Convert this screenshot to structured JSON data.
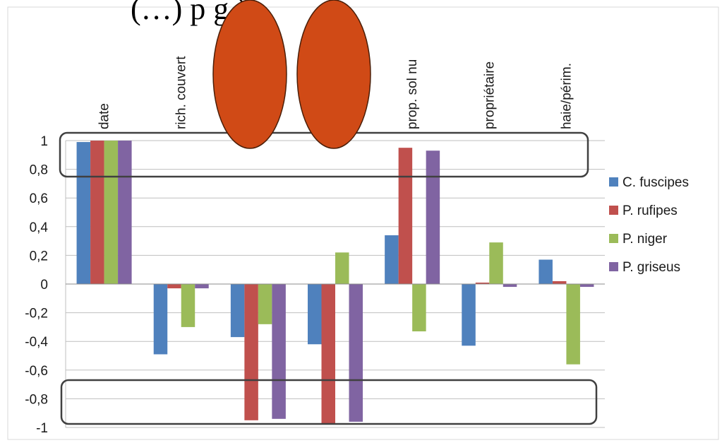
{
  "header_fragment": "(…) p   g   )",
  "chart_data": {
    "type": "bar",
    "categories": [
      "date",
      "rich. couvert",
      "",
      "",
      "prop. sol nu",
      "propriétaire",
      "haie/périm."
    ],
    "series": [
      {
        "name": "C. fuscipes",
        "color": "#4f81bd",
        "values": [
          0.99,
          -0.49,
          -0.37,
          -0.42,
          0.34,
          -0.43,
          0.17
        ]
      },
      {
        "name": "P. rufipes",
        "color": "#c0504d",
        "values": [
          1.0,
          -0.03,
          -0.95,
          -0.98,
          0.95,
          0.01,
          0.02
        ]
      },
      {
        "name": "P. niger",
        "color": "#9bbb59",
        "values": [
          1.0,
          -0.3,
          -0.28,
          0.22,
          -0.33,
          0.29,
          -0.56
        ]
      },
      {
        "name": "P. griseus",
        "color": "#8064a2",
        "values": [
          1.0,
          -0.03,
          -0.94,
          -0.96,
          0.93,
          -0.02,
          -0.02
        ]
      }
    ],
    "ylim": [
      -1,
      1
    ],
    "yticks": [
      "1",
      "0,8",
      "0,6",
      "0,4",
      "0,2",
      "0",
      "-0,2",
      "-0,4",
      "-0,6",
      "-0,8",
      "-1"
    ],
    "grid": true,
    "legend": "right",
    "annotations": {
      "highlight_boxes": [
        "around y between 0.8 and 1",
        "around y between -0.7 and -1"
      ],
      "ovals": [
        "covering category 3 label",
        "covering category 4 label"
      ],
      "oval_color": "#d04a16"
    }
  }
}
